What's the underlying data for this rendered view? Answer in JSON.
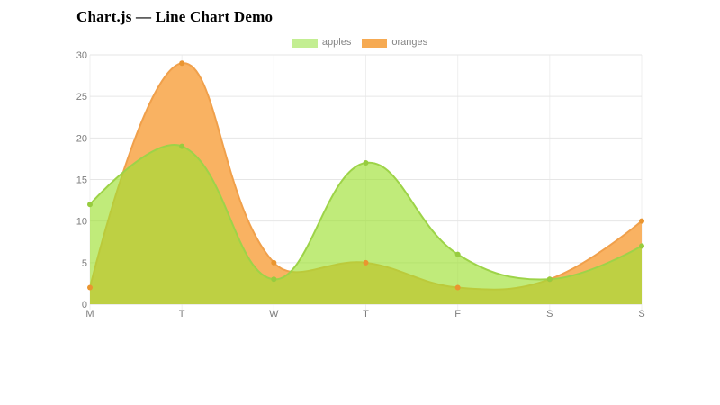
{
  "title": "Chart.js — Line Chart Demo",
  "legend": {
    "items": [
      {
        "label": "apples",
        "color": "#c3ee92"
      },
      {
        "label": "oranges",
        "color": "#f6aa52"
      }
    ]
  },
  "chart_data": {
    "type": "area",
    "title": "Chart.js — Line Chart Demo",
    "categories": [
      "M",
      "T",
      "W",
      "T",
      "F",
      "S",
      "S"
    ],
    "series": [
      {
        "name": "apples",
        "values": [
          12,
          19,
          3,
          17,
          6,
          3,
          7
        ],
        "stroke": "#9dd348",
        "fill": "rgba(158,224,50,0.65)",
        "point": "#97cc3f"
      },
      {
        "name": "oranges",
        "values": [
          2,
          29,
          5,
          5,
          2,
          3,
          10
        ],
        "stroke": "#f0a04b",
        "fill": "#f9b262",
        "point": "#ea9530"
      }
    ],
    "xlabel": "",
    "ylabel": "",
    "ylim": [
      0,
      30
    ],
    "yticks": [
      0,
      5,
      10,
      15,
      20,
      25,
      30
    ],
    "grid": true,
    "legend_position": "top",
    "bezier_tension": 0.4,
    "colors": {
      "h_grid": "#e6e6e6",
      "v_grid": "#efefef",
      "baseline": "#d9d9d9",
      "tick_text": "#7d7d7d"
    }
  }
}
